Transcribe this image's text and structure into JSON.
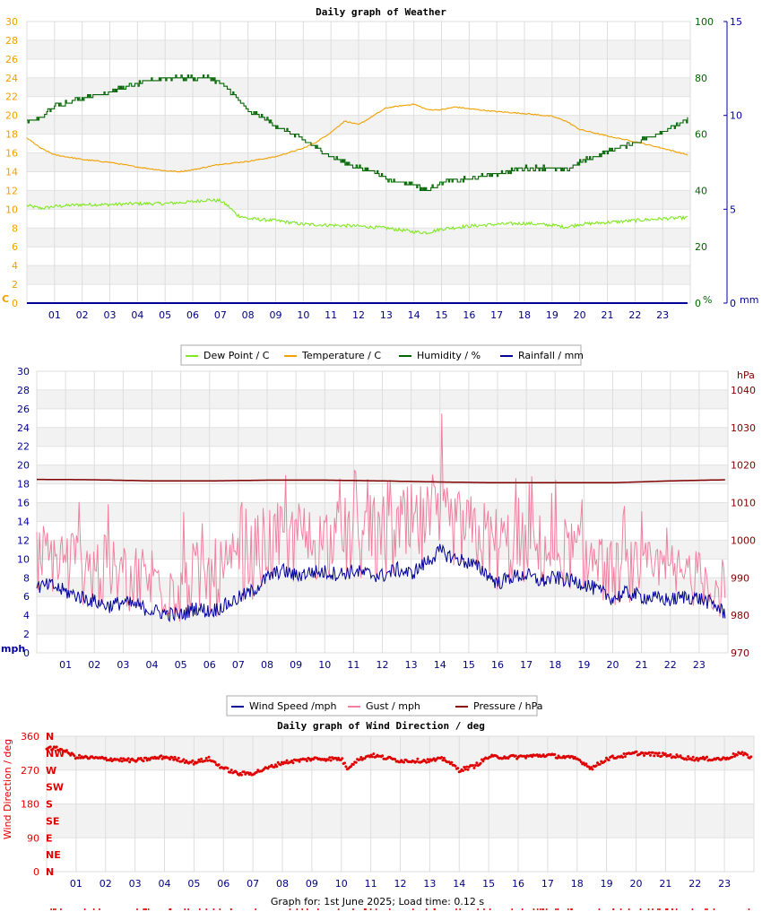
{
  "chart_data": [
    {
      "type": "line",
      "title": "Daily graph of Weather",
      "x": {
        "min": 0,
        "max": 24,
        "tick_labels": [
          "01",
          "02",
          "03",
          "04",
          "05",
          "06",
          "07",
          "08",
          "09",
          "10",
          "11",
          "12",
          "13",
          "14",
          "15",
          "16",
          "17",
          "18",
          "19",
          "20",
          "21",
          "22",
          "23"
        ]
      },
      "left_axis": {
        "unit": "C",
        "min": 0,
        "max": 30,
        "ticks": [
          0,
          2,
          4,
          6,
          8,
          10,
          12,
          14,
          16,
          18,
          20,
          22,
          24,
          26,
          28,
          30
        ],
        "color": "#f0a000"
      },
      "right_axis_1": {
        "unit": "%",
        "min": 0,
        "max": 100,
        "ticks": [
          0,
          20,
          40,
          60,
          80,
          100
        ],
        "color": "#006400"
      },
      "right_axis_2": {
        "unit": "mm",
        "min": 0,
        "max": 15,
        "ticks": [
          0,
          5,
          10,
          15
        ],
        "color": "#00009c"
      },
      "series": [
        {
          "name": "Dew Point / C",
          "axis": "left",
          "color": "#80e820",
          "x": [
            0,
            0.5,
            1,
            2,
            3,
            4,
            5,
            6,
            6.5,
            7,
            7.3,
            7.6,
            8,
            9,
            10,
            11,
            12,
            13,
            14,
            14.5,
            15,
            16,
            17,
            18,
            19,
            19.5,
            20,
            21,
            22,
            23,
            23.9
          ],
          "y": [
            10.4,
            10.1,
            10.3,
            10.5,
            10.5,
            10.6,
            10.6,
            10.8,
            11.0,
            10.9,
            10.3,
            9.4,
            9.0,
            8.8,
            8.4,
            8.3,
            8.2,
            8.0,
            7.6,
            7.5,
            7.9,
            8.2,
            8.4,
            8.5,
            8.3,
            8.1,
            8.4,
            8.6,
            8.8,
            9.0,
            9.1
          ]
        },
        {
          "name": "Temperature / C",
          "axis": "left",
          "color": "#f0a000",
          "x": [
            0,
            0.5,
            1,
            2,
            3,
            4,
            5,
            5.5,
            6,
            7,
            8,
            9,
            10,
            10.5,
            11,
            11.5,
            12,
            12.5,
            13,
            13.5,
            14,
            14.5,
            15,
            15.5,
            16,
            17,
            18,
            19,
            19.5,
            20,
            21,
            22,
            23,
            23.9
          ],
          "y": [
            17.6,
            16.5,
            15.8,
            15.3,
            15.0,
            14.5,
            14.1,
            14.0,
            14.2,
            14.8,
            15.1,
            15.6,
            16.5,
            17.2,
            18.2,
            19.4,
            19.0,
            19.9,
            20.8,
            21.0,
            21.2,
            20.6,
            20.6,
            20.9,
            20.7,
            20.4,
            20.2,
            19.9,
            19.4,
            18.5,
            17.8,
            17.2,
            16.5,
            15.8
          ]
        },
        {
          "name": "Humidity / %",
          "axis": "right_1",
          "color": "#006400",
          "x": [
            0,
            0.5,
            1,
            2,
            3,
            4,
            5,
            6,
            6.6,
            7,
            7.5,
            8,
            8.5,
            9,
            10,
            11,
            12,
            12.5,
            13,
            13.5,
            14,
            14.5,
            15,
            16,
            17,
            18,
            19,
            19.5,
            20,
            21,
            22,
            23,
            23.9
          ],
          "y": [
            64,
            66,
            70,
            73,
            75,
            78,
            80,
            80,
            80,
            78,
            74,
            68,
            66,
            63,
            58,
            52,
            48,
            47,
            44,
            43,
            42,
            40,
            43,
            44,
            46,
            48,
            48,
            47,
            50,
            54,
            57,
            61,
            65
          ]
        },
        {
          "name": "Rainfall / mm",
          "axis": "right_2",
          "color": "#00009c",
          "x": [
            0,
            23.9
          ],
          "y": [
            0,
            0
          ]
        }
      ]
    },
    {
      "type": "line",
      "title": "",
      "x": {
        "min": 0,
        "max": 24,
        "tick_labels": [
          "01",
          "02",
          "03",
          "04",
          "05",
          "06",
          "07",
          "08",
          "09",
          "10",
          "11",
          "12",
          "13",
          "14",
          "15",
          "16",
          "17",
          "18",
          "19",
          "20",
          "21",
          "22",
          "23"
        ]
      },
      "left_axis": {
        "unit": "mph",
        "min": 0,
        "max": 30,
        "ticks": [
          0,
          2,
          4,
          6,
          8,
          10,
          12,
          14,
          16,
          18,
          20,
          22,
          24,
          26,
          28,
          30
        ],
        "color": "#00009c"
      },
      "right_axis": {
        "unit": "hPa",
        "min": 970,
        "max": 1045,
        "ticks": [
          970,
          980,
          990,
          1000,
          1010,
          1020,
          1030,
          1040
        ],
        "color": "#800000"
      },
      "series": [
        {
          "name": "Wind Speed /mph",
          "axis": "left",
          "color": "#00009c",
          "x": [
            0,
            0.5,
            1,
            1.5,
            2,
            2.5,
            3,
            3.5,
            4,
            4.5,
            5,
            5.5,
            6,
            6.5,
            7,
            7.5,
            8,
            8.5,
            9,
            9.5,
            10,
            10.5,
            11,
            11.5,
            12,
            12.5,
            13,
            13.5,
            14,
            14.5,
            15,
            15.5,
            16,
            16.5,
            17,
            17.5,
            18,
            18.5,
            19,
            19.5,
            20,
            20.5,
            21,
            21.5,
            22,
            22.5,
            23,
            23.5,
            23.9
          ],
          "y": [
            7.0,
            7.2,
            6.5,
            6.0,
            5.5,
            5.0,
            5.4,
            5.0,
            4.5,
            4.2,
            4.0,
            4.8,
            4.4,
            5.0,
            5.8,
            6.6,
            8.0,
            8.8,
            8.2,
            8.6,
            8.6,
            8.4,
            8.7,
            8.4,
            8.2,
            8.9,
            8.4,
            9.6,
            10.8,
            10.1,
            9.6,
            8.8,
            7.4,
            8.1,
            8.3,
            7.6,
            8.0,
            7.7,
            7.4,
            6.6,
            5.8,
            6.4,
            6.0,
            5.8,
            5.6,
            6.0,
            5.8,
            5.2,
            4.2
          ]
        },
        {
          "name": "Gust / mph",
          "axis": "left",
          "color": "#f080a0",
          "x": [
            0,
            1,
            2,
            3,
            4,
            5,
            6,
            7,
            8,
            9,
            10,
            11,
            12,
            13,
            14,
            15,
            16,
            17,
            18,
            19,
            20,
            21,
            22,
            23,
            23.9
          ],
          "y": [
            12,
            12,
            11,
            10,
            10,
            10,
            10,
            11,
            14,
            14,
            14,
            15,
            15,
            16,
            16,
            15,
            14,
            13,
            13,
            12,
            10,
            10,
            10,
            9,
            8
          ],
          "peak": 25.5
        },
        {
          "name": "Pressure / hPa",
          "axis": "right",
          "color": "#800000",
          "x": [
            0,
            2,
            4,
            6,
            8,
            10,
            12,
            14,
            16,
            18,
            20,
            22,
            23.9
          ],
          "y": [
            1016.2,
            1016.1,
            1015.8,
            1015.8,
            1016.0,
            1016.0,
            1015.8,
            1015.5,
            1015.3,
            1015.3,
            1015.3,
            1015.8,
            1016.1
          ]
        }
      ]
    },
    {
      "type": "scatter",
      "title": "Daily graph of Wind Direction / deg",
      "x": {
        "min": 0,
        "max": 24,
        "tick_labels": [
          "01",
          "02",
          "03",
          "04",
          "05",
          "06",
          "07",
          "08",
          "09",
          "10",
          "11",
          "12",
          "13",
          "14",
          "15",
          "16",
          "17",
          "18",
          "19",
          "20",
          "21",
          "22",
          "23"
        ]
      },
      "y": {
        "label": "Wind Direction / deg",
        "min": 0,
        "max": 360,
        "ticks": [
          0,
          90,
          180,
          270,
          360
        ]
      },
      "compass_labels": [
        "N",
        "NE",
        "E",
        "SE",
        "S",
        "SW",
        "W",
        "NW",
        "N"
      ],
      "series": [
        {
          "name": "Wind Direction / deg",
          "color": "#e00000",
          "x": [
            0,
            0.5,
            1,
            2,
            3,
            4,
            5,
            5.5,
            6,
            6.5,
            7,
            7.5,
            8,
            9,
            10,
            10.2,
            10.5,
            11,
            12,
            13,
            13.5,
            14,
            14.5,
            15,
            16,
            17,
            18,
            18.5,
            19,
            20,
            21,
            22,
            23,
            23.5,
            23.9
          ],
          "y": [
            330,
            325,
            305,
            300,
            295,
            305,
            290,
            300,
            275,
            260,
            262,
            275,
            290,
            300,
            300,
            275,
            295,
            310,
            295,
            295,
            300,
            270,
            280,
            305,
            305,
            310,
            300,
            275,
            300,
            315,
            310,
            300,
            300,
            315,
            305
          ]
        }
      ]
    }
  ],
  "legend1": [
    {
      "label": "Dew Point / C",
      "color": "#80e820"
    },
    {
      "label": "Temperature / C",
      "color": "#f0a000"
    },
    {
      "label": "Humidity / %",
      "color": "#006400"
    },
    {
      "label": "Rainfall / mm",
      "color": "#00009c"
    }
  ],
  "legend2": [
    {
      "label": "Wind Speed /mph",
      "color": "#00009c"
    },
    {
      "label": "Gust / mph",
      "color": "#f080a0"
    },
    {
      "label": "Pressure / hPa",
      "color": "#800000"
    }
  ],
  "axis_units": {
    "left1": "C",
    "right1": "%",
    "right2": "mm",
    "left2": "mph",
    "right3": "hPa"
  },
  "footer": "Graph for: 1st June 2025; Load time: 0.12 s"
}
